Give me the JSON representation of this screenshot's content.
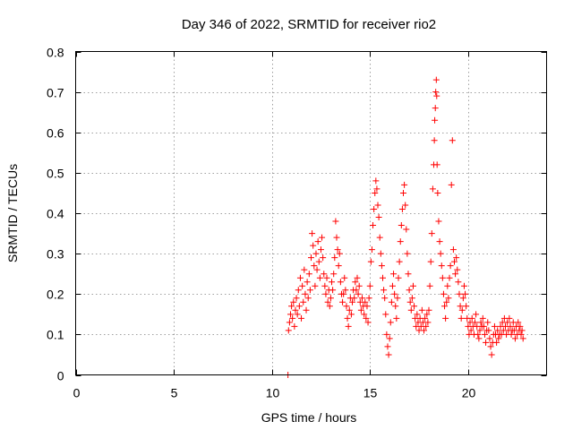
{
  "chart_data": {
    "type": "scatter",
    "title": "Day 346 of 2022, SRMTID for receiver rio2",
    "xlabel": "GPS time / hours",
    "ylabel": "SRMTID / TECUs",
    "xlim": [
      0,
      24
    ],
    "ylim": [
      0,
      0.8
    ],
    "x_ticks": [
      0,
      5,
      10,
      15,
      20
    ],
    "y_ticks": [
      0,
      0.1,
      0.2,
      0.3,
      0.4,
      0.5,
      0.6,
      0.7,
      0.8
    ],
    "x_tick_labels": [
      "0",
      "5",
      "10",
      "15",
      "20"
    ],
    "y_tick_labels": [
      "0",
      "0.1",
      "0.2",
      "0.3",
      "0.4",
      "0.5",
      "0.6",
      "0.7",
      "0.8"
    ],
    "grid": true,
    "marker": "+",
    "color": "#ff0000",
    "series": [
      {
        "name": "rio2",
        "points": [
          [
            10.82,
            0.0
          ],
          [
            10.85,
            0.11
          ],
          [
            10.9,
            0.13
          ],
          [
            10.95,
            0.15
          ],
          [
            11.0,
            0.17
          ],
          [
            11.05,
            0.14
          ],
          [
            11.1,
            0.18
          ],
          [
            11.15,
            0.12
          ],
          [
            11.2,
            0.16
          ],
          [
            11.25,
            0.19
          ],
          [
            11.3,
            0.15
          ],
          [
            11.35,
            0.21
          ],
          [
            11.4,
            0.17
          ],
          [
            11.45,
            0.24
          ],
          [
            11.5,
            0.14
          ],
          [
            11.55,
            0.22
          ],
          [
            11.6,
            0.18
          ],
          [
            11.65,
            0.26
          ],
          [
            11.7,
            0.2
          ],
          [
            11.75,
            0.16
          ],
          [
            11.8,
            0.23
          ],
          [
            11.85,
            0.19
          ],
          [
            11.9,
            0.25
          ],
          [
            11.95,
            0.21
          ],
          [
            12.0,
            0.29
          ],
          [
            12.05,
            0.35
          ],
          [
            12.1,
            0.32
          ],
          [
            12.15,
            0.27
          ],
          [
            12.2,
            0.22
          ],
          [
            12.25,
            0.3
          ],
          [
            12.3,
            0.26
          ],
          [
            12.35,
            0.33
          ],
          [
            12.4,
            0.28
          ],
          [
            12.45,
            0.24
          ],
          [
            12.5,
            0.31
          ],
          [
            12.55,
            0.34
          ],
          [
            12.6,
            0.29
          ],
          [
            12.65,
            0.25
          ],
          [
            12.7,
            0.22
          ],
          [
            12.75,
            0.2
          ],
          [
            12.8,
            0.24
          ],
          [
            12.85,
            0.18
          ],
          [
            12.9,
            0.21
          ],
          [
            12.95,
            0.17
          ],
          [
            13.0,
            0.19
          ],
          [
            13.05,
            0.23
          ],
          [
            13.1,
            0.21
          ],
          [
            13.15,
            0.25
          ],
          [
            13.2,
            0.29
          ],
          [
            13.25,
            0.38
          ],
          [
            13.3,
            0.34
          ],
          [
            13.35,
            0.31
          ],
          [
            13.4,
            0.27
          ],
          [
            13.45,
            0.3
          ],
          [
            13.5,
            0.23
          ],
          [
            13.55,
            0.2
          ],
          [
            13.6,
            0.18
          ],
          [
            13.65,
            0.2
          ],
          [
            13.7,
            0.24
          ],
          [
            13.75,
            0.21
          ],
          [
            13.8,
            0.17
          ],
          [
            13.85,
            0.14
          ],
          [
            13.9,
            0.12
          ],
          [
            13.95,
            0.16
          ],
          [
            14.0,
            0.19
          ],
          [
            14.05,
            0.15
          ],
          [
            14.1,
            0.18
          ],
          [
            14.15,
            0.21
          ],
          [
            14.2,
            0.19
          ],
          [
            14.25,
            0.23
          ],
          [
            14.3,
            0.21
          ],
          [
            14.35,
            0.24
          ],
          [
            14.4,
            0.2
          ],
          [
            14.45,
            0.22
          ],
          [
            14.5,
            0.18
          ],
          [
            14.55,
            0.16
          ],
          [
            14.6,
            0.19
          ],
          [
            14.65,
            0.17
          ],
          [
            14.7,
            0.15
          ],
          [
            14.75,
            0.18
          ],
          [
            14.8,
            0.14
          ],
          [
            14.85,
            0.17
          ],
          [
            14.9,
            0.13
          ],
          [
            14.95,
            0.19
          ],
          [
            15.0,
            0.22
          ],
          [
            15.05,
            0.28
          ],
          [
            15.1,
            0.31
          ],
          [
            15.15,
            0.37
          ],
          [
            15.2,
            0.41
          ],
          [
            15.25,
            0.45
          ],
          [
            15.3,
            0.48
          ],
          [
            15.35,
            0.46
          ],
          [
            15.4,
            0.42
          ],
          [
            15.45,
            0.39
          ],
          [
            15.5,
            0.34
          ],
          [
            15.55,
            0.3
          ],
          [
            15.6,
            0.27
          ],
          [
            15.65,
            0.24
          ],
          [
            15.7,
            0.21
          ],
          [
            15.75,
            0.19
          ],
          [
            15.8,
            0.15
          ],
          [
            15.85,
            0.1
          ],
          [
            15.9,
            0.07
          ],
          [
            15.95,
            0.05
          ],
          [
            16.0,
            0.09
          ],
          [
            16.05,
            0.13
          ],
          [
            16.1,
            0.18
          ],
          [
            16.15,
            0.22
          ],
          [
            16.2,
            0.25
          ],
          [
            16.25,
            0.2
          ],
          [
            16.3,
            0.17
          ],
          [
            16.35,
            0.14
          ],
          [
            16.4,
            0.19
          ],
          [
            16.45,
            0.24
          ],
          [
            16.5,
            0.28
          ],
          [
            16.55,
            0.33
          ],
          [
            16.6,
            0.37
          ],
          [
            16.65,
            0.41
          ],
          [
            16.7,
            0.45
          ],
          [
            16.75,
            0.47
          ],
          [
            16.8,
            0.42
          ],
          [
            16.85,
            0.36
          ],
          [
            16.9,
            0.3
          ],
          [
            16.95,
            0.25
          ],
          [
            17.0,
            0.21
          ],
          [
            17.05,
            0.18
          ],
          [
            17.1,
            0.16
          ],
          [
            17.15,
            0.19
          ],
          [
            17.2,
            0.22
          ],
          [
            17.25,
            0.17
          ],
          [
            17.3,
            0.14
          ],
          [
            17.35,
            0.12
          ],
          [
            17.4,
            0.15
          ],
          [
            17.45,
            0.13
          ],
          [
            17.5,
            0.11
          ],
          [
            17.55,
            0.14
          ],
          [
            17.6,
            0.12
          ],
          [
            17.65,
            0.16
          ],
          [
            17.7,
            0.13
          ],
          [
            17.75,
            0.11
          ],
          [
            17.8,
            0.14
          ],
          [
            17.85,
            0.12
          ],
          [
            17.9,
            0.15
          ],
          [
            17.95,
            0.13
          ],
          [
            18.0,
            0.16
          ],
          [
            18.05,
            0.22
          ],
          [
            18.1,
            0.28
          ],
          [
            18.15,
            0.35
          ],
          [
            18.2,
            0.46
          ],
          [
            18.25,
            0.52
          ],
          [
            18.28,
            0.58
          ],
          [
            18.3,
            0.63
          ],
          [
            18.33,
            0.66
          ],
          [
            18.35,
            0.7
          ],
          [
            18.38,
            0.73
          ],
          [
            18.4,
            0.69
          ],
          [
            18.42,
            0.52
          ],
          [
            18.45,
            0.45
          ],
          [
            18.5,
            0.38
          ],
          [
            18.55,
            0.33
          ],
          [
            18.6,
            0.3
          ],
          [
            18.65,
            0.27
          ],
          [
            18.7,
            0.24
          ],
          [
            18.75,
            0.2
          ],
          [
            18.8,
            0.17
          ],
          [
            18.85,
            0.14
          ],
          [
            18.9,
            0.18
          ],
          [
            18.95,
            0.22
          ],
          [
            19.0,
            0.19
          ],
          [
            19.05,
            0.24
          ],
          [
            19.1,
            0.27
          ],
          [
            19.15,
            0.47
          ],
          [
            19.2,
            0.58
          ],
          [
            19.25,
            0.31
          ],
          [
            19.3,
            0.28
          ],
          [
            19.35,
            0.25
          ],
          [
            19.4,
            0.29
          ],
          [
            19.45,
            0.26
          ],
          [
            19.5,
            0.23
          ],
          [
            19.55,
            0.2
          ],
          [
            19.6,
            0.17
          ],
          [
            19.65,
            0.14
          ],
          [
            19.7,
            0.16
          ],
          [
            19.75,
            0.19
          ],
          [
            19.8,
            0.22
          ],
          [
            19.85,
            0.2
          ],
          [
            19.9,
            0.17
          ],
          [
            19.95,
            0.14
          ],
          [
            20.0,
            0.12
          ],
          [
            20.05,
            0.1
          ],
          [
            20.1,
            0.13
          ],
          [
            20.15,
            0.11
          ],
          [
            20.2,
            0.14
          ],
          [
            20.25,
            0.12
          ],
          [
            20.3,
            0.1
          ],
          [
            20.35,
            0.13
          ],
          [
            20.4,
            0.15
          ],
          [
            20.45,
            0.12
          ],
          [
            20.5,
            0.1
          ],
          [
            20.55,
            0.09
          ],
          [
            20.6,
            0.11
          ],
          [
            20.65,
            0.13
          ],
          [
            20.7,
            0.12
          ],
          [
            20.75,
            0.14
          ],
          [
            20.8,
            0.12
          ],
          [
            20.85,
            0.1
          ],
          [
            20.9,
            0.08
          ],
          [
            20.95,
            0.11
          ],
          [
            21.0,
            0.13
          ],
          [
            21.05,
            0.11
          ],
          [
            21.1,
            0.09
          ],
          [
            21.15,
            0.07
          ],
          [
            21.2,
            0.05
          ],
          [
            21.25,
            0.08
          ],
          [
            21.3,
            0.1
          ],
          [
            21.35,
            0.12
          ],
          [
            21.4,
            0.1
          ],
          [
            21.45,
            0.08
          ],
          [
            21.5,
            0.11
          ],
          [
            21.55,
            0.09
          ],
          [
            21.6,
            0.1
          ],
          [
            21.65,
            0.12
          ],
          [
            21.7,
            0.1
          ],
          [
            21.75,
            0.13
          ],
          [
            21.8,
            0.11
          ],
          [
            21.85,
            0.14
          ],
          [
            21.9,
            0.12
          ],
          [
            21.95,
            0.1
          ],
          [
            22.0,
            0.13
          ],
          [
            22.05,
            0.11
          ],
          [
            22.1,
            0.14
          ],
          [
            22.15,
            0.12
          ],
          [
            22.2,
            0.1
          ],
          [
            22.25,
            0.11
          ],
          [
            22.3,
            0.13
          ],
          [
            22.35,
            0.11
          ],
          [
            22.4,
            0.09
          ],
          [
            22.45,
            0.12
          ],
          [
            22.5,
            0.1
          ],
          [
            22.55,
            0.13
          ],
          [
            22.6,
            0.11
          ],
          [
            22.65,
            0.12
          ],
          [
            22.7,
            0.1
          ],
          [
            22.75,
            0.11
          ],
          [
            22.8,
            0.09
          ]
        ]
      }
    ]
  }
}
